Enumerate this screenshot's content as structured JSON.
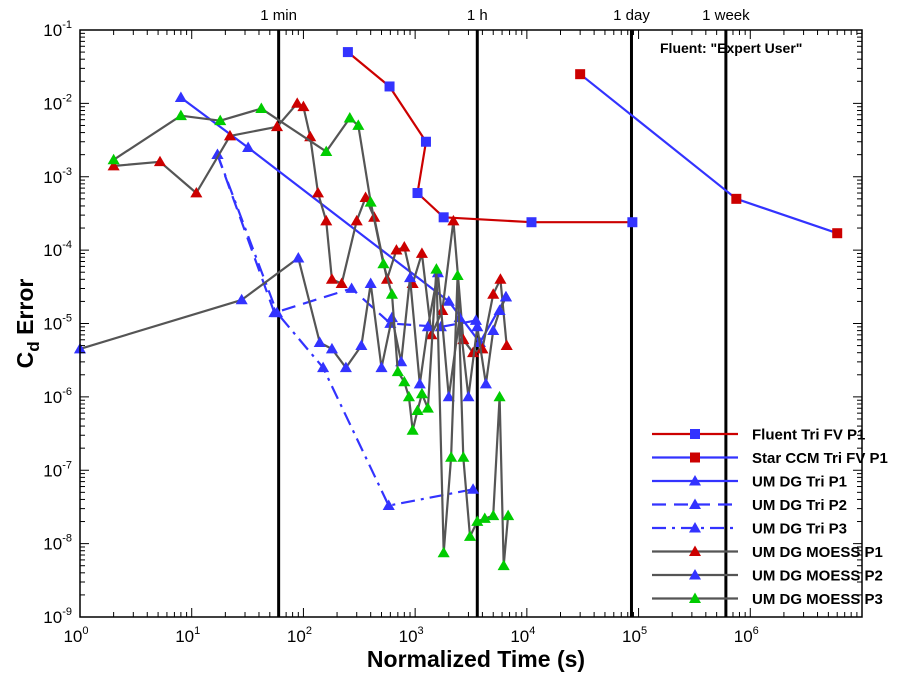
{
  "chart_data": {
    "type": "line",
    "x_scale": "log",
    "y_scale": "log",
    "xlabel": "Normalized Time (s)",
    "ylabel_main": "C",
    "ylabel_sub": "d",
    "ylabel_rest": " Error",
    "xlim": [
      1,
      10000000
    ],
    "ylim": [
      1e-09,
      0.1
    ],
    "x_ticks": [
      {
        "value": 1,
        "base": "10",
        "exp": "0"
      },
      {
        "value": 10,
        "base": "10",
        "exp": "1"
      },
      {
        "value": 100,
        "base": "10",
        "exp": "2"
      },
      {
        "value": 1000,
        "base": "10",
        "exp": "3"
      },
      {
        "value": 10000,
        "base": "10",
        "exp": "4"
      },
      {
        "value": 100000,
        "base": "10",
        "exp": "5"
      },
      {
        "value": 1000000,
        "base": "10",
        "exp": "6"
      }
    ],
    "y_ticks": [
      {
        "value": 0.1,
        "base": "10",
        "exp": "-1"
      },
      {
        "value": 0.01,
        "base": "10",
        "exp": "-2"
      },
      {
        "value": 0.001,
        "base": "10",
        "exp": "-3"
      },
      {
        "value": 0.0001,
        "base": "10",
        "exp": "-4"
      },
      {
        "value": 1e-05,
        "base": "10",
        "exp": "-5"
      },
      {
        "value": 1e-06,
        "base": "10",
        "exp": "-6"
      },
      {
        "value": 1e-07,
        "base": "10",
        "exp": "-7"
      },
      {
        "value": 1e-08,
        "base": "10",
        "exp": "-8"
      },
      {
        "value": 1e-09,
        "base": "10",
        "exp": "-9"
      }
    ],
    "time_markers": [
      {
        "label": "1 min",
        "x": 60
      },
      {
        "label": "1 h",
        "x": 3600
      },
      {
        "label": "1 day",
        "x": 86400
      },
      {
        "label": "1 week",
        "x": 604800
      }
    ],
    "annotation": "Fluent: \"Expert User\"",
    "series": [
      {
        "name": "Fluent Tri FV P1",
        "line_color": "#cc0000",
        "marker": "square",
        "marker_color": "#3333ff",
        "dash": "solid",
        "points": [
          [
            250,
            0.05
          ],
          [
            590,
            0.017
          ],
          [
            1250,
            0.003
          ],
          [
            1050,
            0.0006
          ],
          [
            1800,
            0.00028
          ],
          [
            11000,
            0.00024
          ],
          [
            88000,
            0.00024
          ]
        ]
      },
      {
        "name": "Star CCM Tri FV P1",
        "line_color": "#3333ff",
        "marker": "square",
        "marker_color": "#cc0000",
        "dash": "solid",
        "points": [
          [
            30000,
            0.025
          ],
          [
            750000,
            0.0005
          ],
          [
            6000000,
            0.00017
          ]
        ]
      },
      {
        "name": "UM DG Tri P1",
        "line_color": "#3333ff",
        "marker": "triangle",
        "marker_color": "#3333ff",
        "dash": "solid",
        "points": [
          [
            8,
            0.012
          ],
          [
            32,
            0.0025
          ],
          [
            2000,
            2e-05
          ],
          [
            3800,
            5.5e-06
          ],
          [
            6500,
            2.3e-05
          ]
        ]
      },
      {
        "name": "UM DG Tri P2",
        "line_color": "#3333ff",
        "marker": "triangle",
        "marker_color": "#3333ff",
        "dash": "dashed",
        "points": [
          [
            17,
            0.002
          ],
          [
            55,
            1.4e-05
          ],
          [
            270,
            3e-05
          ],
          [
            600,
            1e-05
          ],
          [
            1700,
            9e-06
          ],
          [
            3500,
            1.1e-05
          ]
        ]
      },
      {
        "name": "UM DG Tri P3",
        "line_color": "#3333ff",
        "marker": "triangle",
        "marker_color": "#3333ff",
        "dash": "dashdot",
        "points": [
          [
            17,
            0.002
          ],
          [
            58,
            1.4e-05
          ],
          [
            150,
            2.5e-06
          ],
          [
            580,
            3.3e-08
          ],
          [
            3300,
            5.5e-08
          ]
        ]
      },
      {
        "name": "UM DG MOESS P1",
        "line_color": "#555555",
        "marker": "triangle",
        "marker_color": "#cc0000",
        "dash": "solid",
        "points": [
          [
            2,
            0.0014
          ],
          [
            5.2,
            0.0016
          ],
          [
            11,
            0.0006
          ],
          [
            22,
            0.0036
          ],
          [
            58,
            0.0048
          ],
          [
            88,
            0.01
          ],
          [
            100,
            0.009
          ],
          [
            115,
            0.0035
          ],
          [
            135,
            0.0006
          ],
          [
            160,
            0.00025
          ],
          [
            180,
            4e-05
          ],
          [
            220,
            3.5e-05
          ],
          [
            300,
            0.00025
          ],
          [
            360,
            0.00052
          ],
          [
            430,
            0.00028
          ],
          [
            560,
            4e-05
          ],
          [
            680,
            0.0001
          ],
          [
            800,
            0.00011
          ],
          [
            950,
            3.5e-05
          ],
          [
            1150,
            9e-05
          ],
          [
            1400,
            7e-06
          ],
          [
            1750,
            1.5e-05
          ],
          [
            2200,
            0.00025
          ],
          [
            2700,
            6e-06
          ],
          [
            3300,
            4e-06
          ],
          [
            4000,
            4.5e-06
          ],
          [
            5000,
            2.5e-05
          ],
          [
            5800,
            4e-05
          ],
          [
            6600,
            5e-06
          ]
        ]
      },
      {
        "name": "UM DG MOESS P2",
        "line_color": "#555555",
        "marker": "triangle",
        "marker_color": "#3333ff",
        "dash": "solid",
        "points": [
          [
            1,
            4.5e-06
          ],
          [
            28,
            2.1e-05
          ],
          [
            90,
            7.8e-05
          ],
          [
            140,
            5.5e-06
          ],
          [
            180,
            4.5e-06
          ],
          [
            240,
            2.5e-06
          ],
          [
            330,
            5e-06
          ],
          [
            400,
            3.5e-05
          ],
          [
            500,
            2.5e-06
          ],
          [
            620,
            1.2e-05
          ],
          [
            750,
            3e-06
          ],
          [
            900,
            4.2e-05
          ],
          [
            1100,
            1.5e-06
          ],
          [
            1300,
            9e-06
          ],
          [
            1600,
            4.9e-05
          ],
          [
            2000,
            1e-06
          ],
          [
            2500,
            1.2e-05
          ],
          [
            3000,
            1e-06
          ],
          [
            3600,
            9e-06
          ],
          [
            4300,
            1.5e-06
          ],
          [
            5000,
            8e-06
          ],
          [
            5700,
            1.5e-05
          ],
          [
            6500,
            2.3e-05
          ]
        ]
      },
      {
        "name": "UM DG MOESS P3",
        "line_color": "#555555",
        "marker": "triangle",
        "marker_color": "#00cc00",
        "dash": "solid",
        "points": [
          [
            2,
            0.0017
          ],
          [
            8,
            0.0068
          ],
          [
            18,
            0.0058
          ],
          [
            42,
            0.0085
          ],
          [
            160,
            0.0022
          ],
          [
            260,
            0.0063
          ],
          [
            310,
            0.005
          ],
          [
            400,
            0.00045
          ],
          [
            520,
            6.5e-05
          ],
          [
            620,
            2.5e-05
          ],
          [
            700,
            2.2e-06
          ],
          [
            800,
            1.6e-06
          ],
          [
            880,
            1e-06
          ],
          [
            950,
            3.5e-07
          ],
          [
            1050,
            6.5e-07
          ],
          [
            1150,
            1.1e-06
          ],
          [
            1300,
            7e-07
          ],
          [
            1550,
            5.5e-05
          ],
          [
            1800,
            7.5e-09
          ],
          [
            2100,
            1.5e-07
          ],
          [
            2400,
            4.5e-05
          ],
          [
            2700,
            1.5e-07
          ],
          [
            3100,
            1.25e-08
          ],
          [
            3600,
            2e-08
          ],
          [
            4200,
            2.2e-08
          ],
          [
            5000,
            2.4e-08
          ],
          [
            5700,
            1e-06
          ],
          [
            6200,
            5e-09
          ],
          [
            6800,
            2.4e-08
          ]
        ]
      }
    ],
    "legend_position": "bottom-right"
  }
}
